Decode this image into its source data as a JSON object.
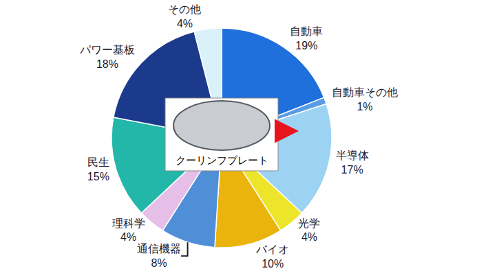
{
  "chart_data": {
    "type": "pie",
    "categories": [
      "自動車",
      "自動車その他",
      "半導体",
      "光学",
      "バイオ",
      "通信機器",
      "理科学",
      "民生",
      "パワー基板",
      "その他"
    ],
    "values": [
      19,
      1,
      17,
      4,
      10,
      8,
      4,
      15,
      18,
      4
    ],
    "value_labels": [
      "19%",
      "1%",
      "17%",
      "4%",
      "10%",
      "8%",
      "4%",
      "15%",
      "18%",
      "4%"
    ],
    "colors": [
      "#1f6fdc",
      "#5a9be6",
      "#9dd3f2",
      "#ece52a",
      "#ebb40c",
      "#4f8fd8",
      "#e6bfe9",
      "#22b7a9",
      "#1b3a8c",
      "#d9f1f8"
    ],
    "data_labels": true,
    "annotations": [
      "クーリンフプレート"
    ]
  }
}
